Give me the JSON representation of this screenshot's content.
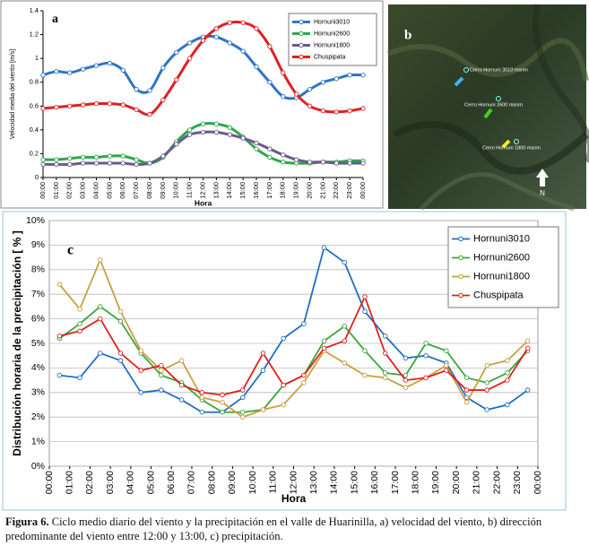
{
  "chart_data": [
    {
      "type": "line",
      "panel_label": "a",
      "smooth": true,
      "grid": false,
      "legend": "upper right",
      "y_label": "Velocidad media del viento [m/s]",
      "x_label": "Hora",
      "categories": [
        "00:00",
        "01:00",
        "02:00",
        "03:00",
        "04:00",
        "05:00",
        "06:00",
        "07:00",
        "08:00",
        "09:00",
        "10:00",
        "11:00",
        "12:00",
        "13:00",
        "14:00",
        "15:00",
        "16:00",
        "17:00",
        "18:00",
        "19:00",
        "20:00",
        "21:00",
        "22:00",
        "23:00",
        "00:00"
      ],
      "ylim": [
        0,
        1.4
      ],
      "yticks": [
        0,
        0.2,
        0.4,
        0.6,
        0.8,
        1,
        1.2,
        1.4
      ],
      "series": [
        {
          "name": "Hornuni3010",
          "color": "#2e75c6",
          "values": [
            0.86,
            0.89,
            0.88,
            0.91,
            0.94,
            0.96,
            0.9,
            0.74,
            0.73,
            0.92,
            1.05,
            1.13,
            1.18,
            1.18,
            1.13,
            1.06,
            0.93,
            0.8,
            0.68,
            0.67,
            0.74,
            0.8,
            0.83,
            0.86,
            0.86
          ]
        },
        {
          "name": "Hornuni2600",
          "color": "#2ea84a",
          "values": [
            0.15,
            0.15,
            0.16,
            0.17,
            0.17,
            0.18,
            0.18,
            0.15,
            0.12,
            0.17,
            0.3,
            0.4,
            0.45,
            0.45,
            0.42,
            0.34,
            0.24,
            0.17,
            0.13,
            0.12,
            0.12,
            0.13,
            0.13,
            0.14,
            0.14
          ]
        },
        {
          "name": "Hornuni1800",
          "color": "#6a5a8c",
          "values": [
            0.11,
            0.11,
            0.11,
            0.12,
            0.12,
            0.12,
            0.12,
            0.11,
            0.12,
            0.18,
            0.28,
            0.36,
            0.38,
            0.38,
            0.36,
            0.33,
            0.29,
            0.24,
            0.19,
            0.15,
            0.13,
            0.13,
            0.12,
            0.12,
            0.12
          ]
        },
        {
          "name": "Chuspipata",
          "color": "#e02020",
          "values": [
            0.58,
            0.59,
            0.6,
            0.61,
            0.62,
            0.62,
            0.61,
            0.57,
            0.53,
            0.65,
            0.82,
            1.0,
            1.15,
            1.25,
            1.3,
            1.3,
            1.25,
            1.1,
            0.88,
            0.7,
            0.6,
            0.56,
            0.55,
            0.56,
            0.58
          ]
        }
      ]
    },
    {
      "type": "line",
      "panel_label": "c",
      "smooth": false,
      "grid": true,
      "legend": "upper right",
      "y_label": "Distribución horaria de la precipitación [ % ]",
      "x_label": "Hora",
      "x": [
        0.5,
        1.5,
        2.5,
        3.5,
        4.5,
        5.5,
        6.5,
        7.5,
        8.5,
        9.5,
        10.5,
        11.5,
        12.5,
        13.5,
        14.5,
        15.5,
        16.5,
        17.5,
        18.5,
        19.5,
        20.5,
        21.5,
        22.5,
        23.5
      ],
      "xlim": [
        0,
        24
      ],
      "xticks": [
        {
          "value": 0,
          "label": "00:00"
        },
        {
          "value": 1,
          "label": "01:00"
        },
        {
          "value": 2,
          "label": "02:00"
        },
        {
          "value": 3,
          "label": "03:00"
        },
        {
          "value": 4,
          "label": "04:00"
        },
        {
          "value": 5,
          "label": "05:00"
        },
        {
          "value": 6,
          "label": "06:00"
        },
        {
          "value": 7,
          "label": "07:00"
        },
        {
          "value": 8,
          "label": "08:00"
        },
        {
          "value": 9,
          "label": "09:00"
        },
        {
          "value": 10,
          "label": "10:00"
        },
        {
          "value": 11,
          "label": "11:00"
        },
        {
          "value": 12,
          "label": "12:00"
        },
        {
          "value": 13,
          "label": "13:00"
        },
        {
          "value": 14,
          "label": "14:00"
        },
        {
          "value": 15,
          "label": "15:00"
        },
        {
          "value": 16,
          "label": "16:00"
        },
        {
          "value": 17,
          "label": "17:00"
        },
        {
          "value": 18,
          "label": "18:00"
        },
        {
          "value": 19,
          "label": "19:00"
        },
        {
          "value": 20,
          "label": "20:00"
        },
        {
          "value": 21,
          "label": "21:00"
        },
        {
          "value": 22,
          "label": "22:00"
        },
        {
          "value": 23,
          "label": "23:00"
        },
        {
          "value": 24,
          "label": "00:00"
        }
      ],
      "ylim": [
        0,
        10
      ],
      "yticks": [
        {
          "value": 0,
          "label": "0%"
        },
        {
          "value": 1,
          "label": "1%"
        },
        {
          "value": 2,
          "label": "2%"
        },
        {
          "value": 3,
          "label": "3%"
        },
        {
          "value": 4,
          "label": "4%"
        },
        {
          "value": 5,
          "label": "5%"
        },
        {
          "value": 6,
          "label": "6%"
        },
        {
          "value": 7,
          "label": "7%"
        },
        {
          "value": 8,
          "label": "8%"
        },
        {
          "value": 9,
          "label": "9%"
        },
        {
          "value": 10,
          "label": "10%"
        }
      ],
      "series": [
        {
          "name": "Hornuni3010",
          "color": "#1f6fbf",
          "values": [
            3.7,
            3.6,
            4.6,
            4.3,
            3.0,
            3.1,
            2.7,
            2.2,
            2.2,
            2.8,
            3.9,
            5.2,
            5.8,
            8.9,
            8.3,
            6.3,
            5.3,
            4.4,
            4.5,
            4.2,
            2.8,
            2.3,
            2.5,
            3.1
          ]
        },
        {
          "name": "Hornuni2600",
          "color": "#3aa63a",
          "values": [
            5.2,
            5.8,
            6.5,
            5.9,
            4.6,
            3.7,
            3.4,
            2.7,
            2.2,
            2.2,
            2.3,
            3.3,
            3.7,
            5.1,
            5.7,
            4.7,
            3.8,
            3.7,
            5.0,
            4.7,
            3.6,
            3.4,
            3.8,
            4.7
          ]
        },
        {
          "name": "Hornuni1800",
          "color": "#c8a040",
          "values": [
            7.4,
            6.4,
            8.4,
            6.3,
            4.7,
            3.9,
            4.3,
            2.8,
            2.6,
            2.0,
            2.3,
            2.5,
            3.4,
            4.7,
            4.2,
            3.7,
            3.6,
            3.2,
            3.6,
            4.1,
            2.6,
            4.1,
            4.3,
            5.1
          ]
        },
        {
          "name": "Chuspipata",
          "color": "#e02020",
          "values": [
            5.3,
            5.5,
            6.0,
            4.6,
            3.9,
            4.1,
            3.3,
            3.0,
            2.9,
            3.1,
            4.6,
            3.3,
            3.7,
            4.8,
            5.1,
            6.9,
            4.6,
            3.5,
            3.6,
            3.9,
            3.1,
            3.1,
            3.5,
            4.8
          ]
        }
      ]
    }
  ],
  "panel_b": {
    "label": "b",
    "sites": [
      "Cerro Hornuni 3010 msnm",
      "Cerro Hornuni 2600 msnm",
      "Cerro Hornuni 1800 msnm"
    ],
    "north": "N"
  },
  "caption": {
    "label": "Figura 6.",
    "text": "Ciclo medio diario del viento y la precipitación en el valle de Huarinilla, a) velocidad del viento, b) dirección predominante del viento entre 12:00 y 13:00, c) precipitación."
  }
}
